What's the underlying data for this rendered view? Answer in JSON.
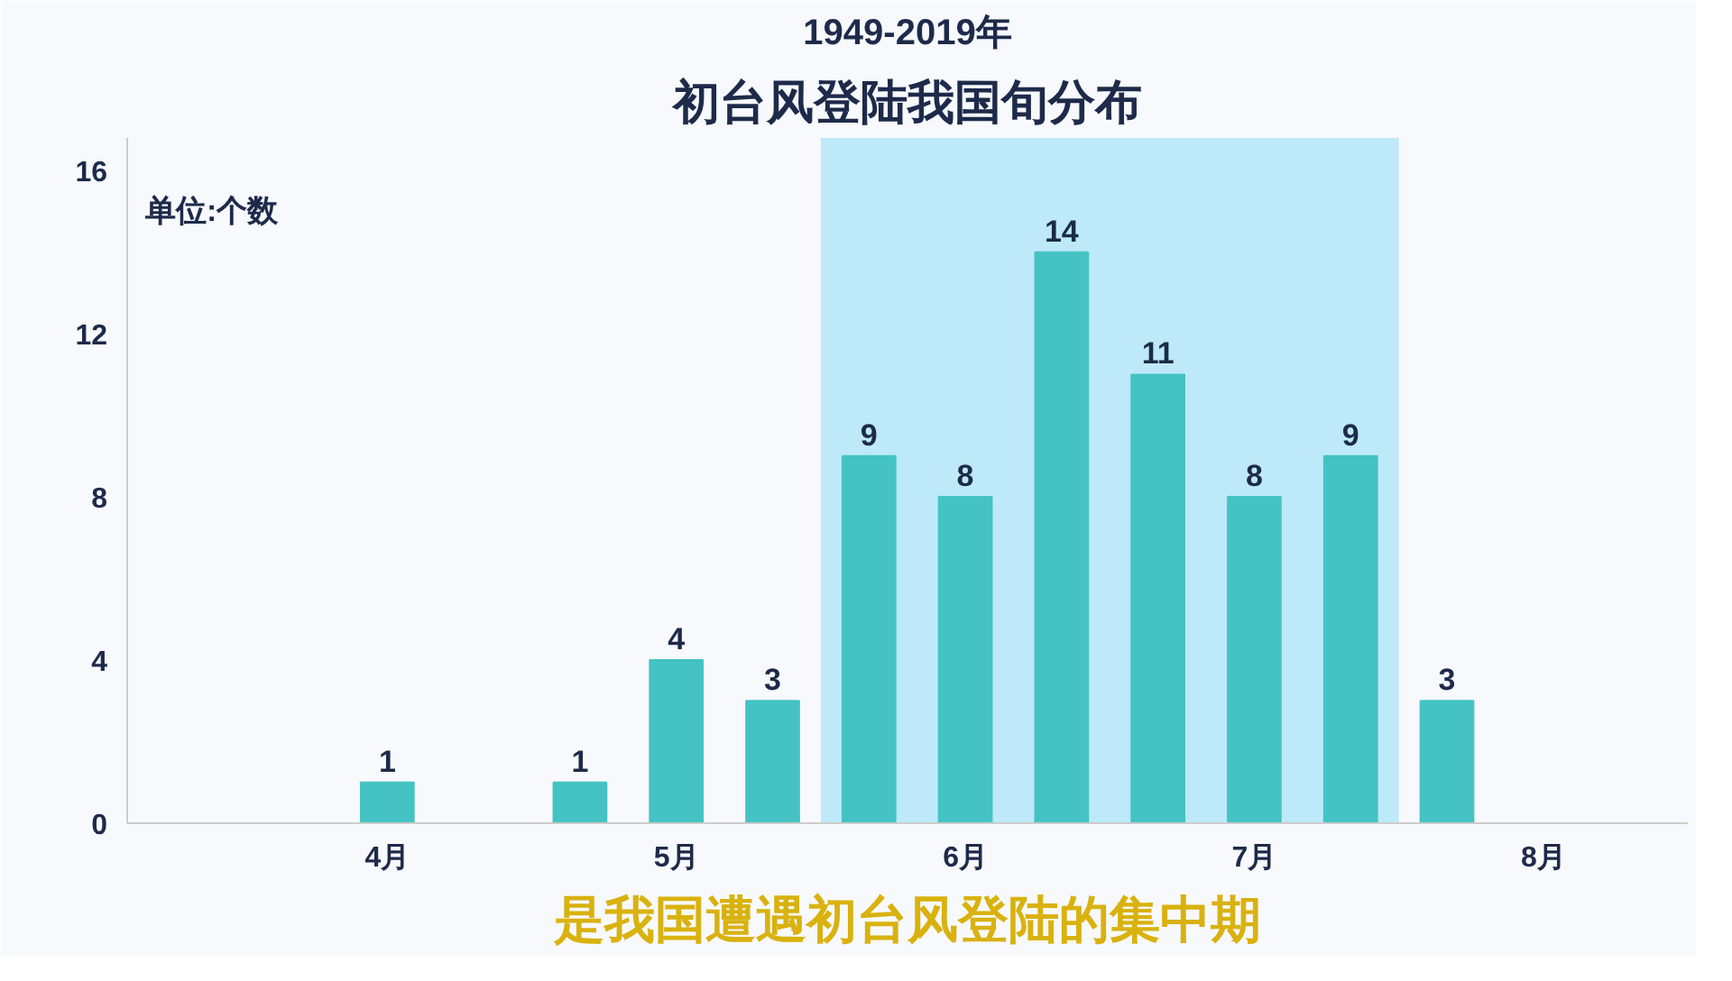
{
  "chart_data": {
    "type": "bar",
    "title": "1949-2019年",
    "subtitle": "初台风登陆我国旬分布",
    "categories": [
      "4月",
      "5月",
      "6月",
      "7月",
      "8月"
    ],
    "series": [
      {
        "color": "#45c3c4",
        "values": [
          0,
          1,
          9,
          11,
          3
        ],
        "value_labels": [
          null,
          "1",
          "9",
          "11",
          "3"
        ]
      },
      {
        "color": "#45c3c4",
        "values": [
          1,
          4,
          8,
          8,
          0
        ],
        "value_labels": [
          "1",
          "4",
          "8",
          "8",
          null
        ]
      },
      {
        "color": "#45c3c4",
        "values": [
          0,
          3,
          14,
          9,
          0
        ],
        "value_labels": [
          null,
          "3",
          "14",
          "9",
          null
        ]
      }
    ],
    "ylim": [
      0,
      16.8
    ],
    "yticks": [
      0,
      4,
      8,
      12,
      16
    ],
    "grid": false,
    "bands": [
      {
        "axis": "x",
        "from": "6月",
        "to": "7月",
        "label": null,
        "color": "#bde9f8"
      }
    ],
    "annotations": [
      "单位:个数",
      "是我国遭遇初台风登陆的集中期"
    ]
  }
}
